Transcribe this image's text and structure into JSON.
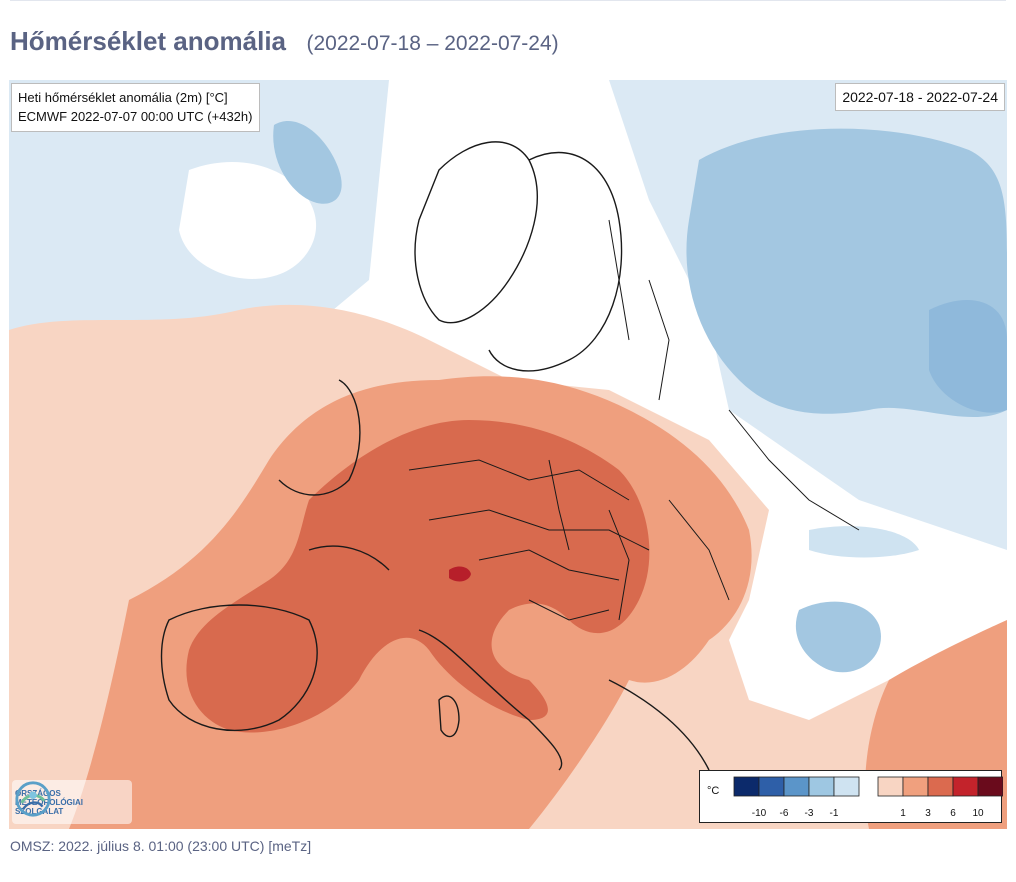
{
  "header": {
    "title": "Hőmérséklet anomália",
    "date_range": "(2022-07-18 – 2022-07-24)"
  },
  "map": {
    "info_line1": "Heti hőmérséklet anomália (2m) [°C]",
    "info_line2": "ECMWF 2022-07-07 00:00 UTC (+432h)",
    "period": "2022-07-18 - 2022-07-24"
  },
  "logo": {
    "line1": "ORSZÁGOS",
    "line2": "METEOROLÓGIAI",
    "line3": "SZOLGÁLAT"
  },
  "legend": {
    "unit": "°C",
    "cold_ticks": [
      "-10",
      "-6",
      "-3",
      "-1"
    ],
    "warm_ticks": [
      "1",
      "3",
      "6",
      "10"
    ],
    "cold_colors": [
      "#0c2a6b",
      "#2e5fa8",
      "#5b95c9",
      "#9ec7e2",
      "#cfe3f1"
    ],
    "warm_colors": [
      "#f8d5c3",
      "#f0a07e",
      "#db6a4f",
      "#c3232b",
      "#6a0b1c"
    ]
  },
  "footer": {
    "credit": "OMSZ: 2022. július 8. 01:00 (23:00  UTC)  [meTz]"
  }
}
